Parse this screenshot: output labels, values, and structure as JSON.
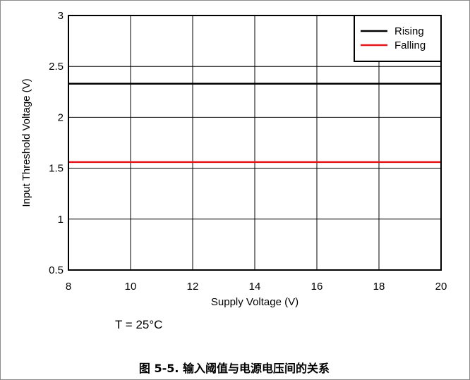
{
  "chart_data": {
    "type": "line",
    "xlabel": "Supply Voltage (V)",
    "ylabel": "Input Threshold Voltage (V)",
    "xlim": [
      8,
      20
    ],
    "ylim": [
      0.5,
      3
    ],
    "xticks": [
      8,
      10,
      12,
      14,
      16,
      18,
      20
    ],
    "yticks": [
      0.5,
      1,
      1.5,
      2,
      2.5,
      3
    ],
    "xtick_labels": [
      "8",
      "10",
      "12",
      "14",
      "16",
      "18",
      "20"
    ],
    "ytick_labels": [
      "0.5",
      "1",
      "1.5",
      "2",
      "2.5",
      "3"
    ],
    "grid": true,
    "legend_position": "top-right",
    "series": [
      {
        "name": "Rising",
        "color": "#000000",
        "x": [
          8,
          20
        ],
        "y": [
          2.33,
          2.33
        ]
      },
      {
        "name": "Falling",
        "color": "#e8141b",
        "x": [
          8,
          20
        ],
        "y": [
          1.56,
          1.56
        ]
      }
    ]
  },
  "annotation": "T = 25°C",
  "caption": "图 5-5. 输入阈值与电源电压间的关系"
}
